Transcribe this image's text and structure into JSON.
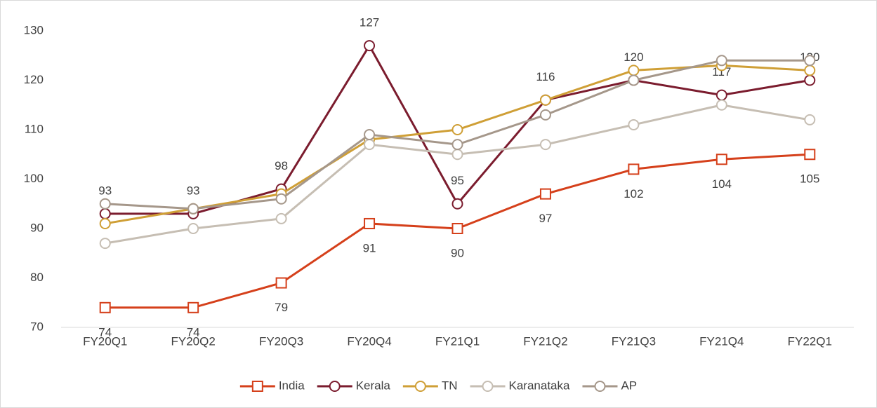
{
  "chart_data": {
    "type": "line",
    "categories": [
      "FY20Q1",
      "FY20Q2",
      "FY20Q3",
      "FY20Q4",
      "FY21Q1",
      "FY21Q2",
      "FY21Q3",
      "FY21Q4",
      "FY22Q1"
    ],
    "series": [
      {
        "name": "India",
        "color": "#d5401b",
        "marker": "square",
        "data_labels": "below",
        "values": [
          74,
          74,
          79,
          91,
          90,
          97,
          102,
          104,
          105
        ]
      },
      {
        "name": "Kerala",
        "color": "#7b1c2e",
        "marker": "circle",
        "data_labels": "above",
        "values": [
          93,
          93,
          98,
          127,
          95,
          116,
          120,
          117,
          120
        ]
      },
      {
        "name": "TN",
        "color": "#cf9f36",
        "marker": "circle",
        "values": [
          91,
          94,
          97,
          108,
          110,
          116,
          122,
          123,
          122
        ]
      },
      {
        "name": "Karanataka",
        "color": "#c6beb3",
        "marker": "circle",
        "values": [
          87,
          90,
          92,
          107,
          105,
          107,
          111,
          115,
          112
        ]
      },
      {
        "name": "AP",
        "color": "#a5978a",
        "marker": "circle",
        "values": [
          95,
          94,
          96,
          109,
          107,
          113,
          120,
          124,
          124
        ]
      }
    ],
    "ylim": [
      70,
      130
    ],
    "yticks": [
      70,
      80,
      90,
      100,
      110,
      120,
      130
    ],
    "grid": false,
    "legend": "bottom"
  }
}
